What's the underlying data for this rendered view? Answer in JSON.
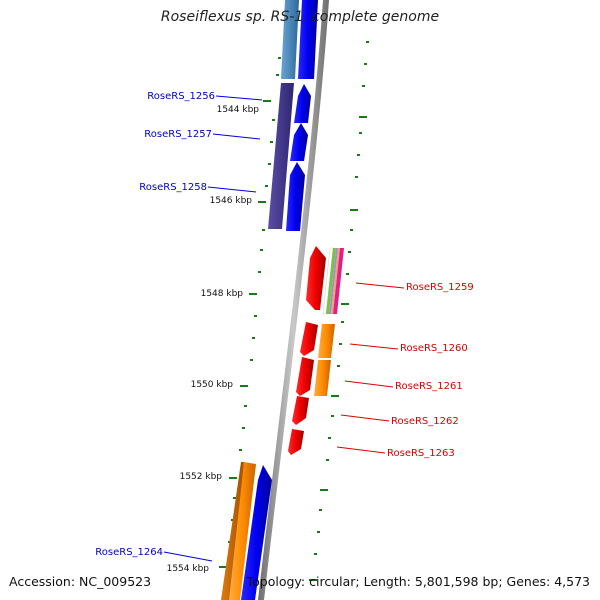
{
  "title": "Roseiflexus sp. RS-1, complete genome",
  "accession_text": "Accession: NC_009523",
  "topology_text": "Topology: circular; Length: 5,801,598 bp; Genes: 4,573",
  "kbp_ticks": [
    "1544 kbp",
    "1546 kbp",
    "1548 kbp",
    "1550 kbp",
    "1552 kbp",
    "1554 kbp"
  ],
  "genes_forward": [
    {
      "label": "RoseRS_1256"
    },
    {
      "label": "RoseRS_1257"
    },
    {
      "label": "RoseRS_1258"
    },
    {
      "label": "RoseRS_1264"
    }
  ],
  "genes_reverse": [
    {
      "label": "RoseRS_1259"
    },
    {
      "label": "RoseRS_1260"
    },
    {
      "label": "RoseRS_1261"
    },
    {
      "label": "RoseRS_1262"
    },
    {
      "label": "RoseRS_1263"
    }
  ],
  "colors": {
    "forward_label": "#0000cc",
    "reverse_label": "#dd0000",
    "backbone": "#8c8c8c",
    "tick": "#1a7a1a",
    "cds_blue": "#0000ee",
    "cds_red": "#ee0000",
    "cds_orange": "#ff8c00",
    "cds_purple": "#4a3d8f",
    "cds_steel": "#4682b4"
  }
}
